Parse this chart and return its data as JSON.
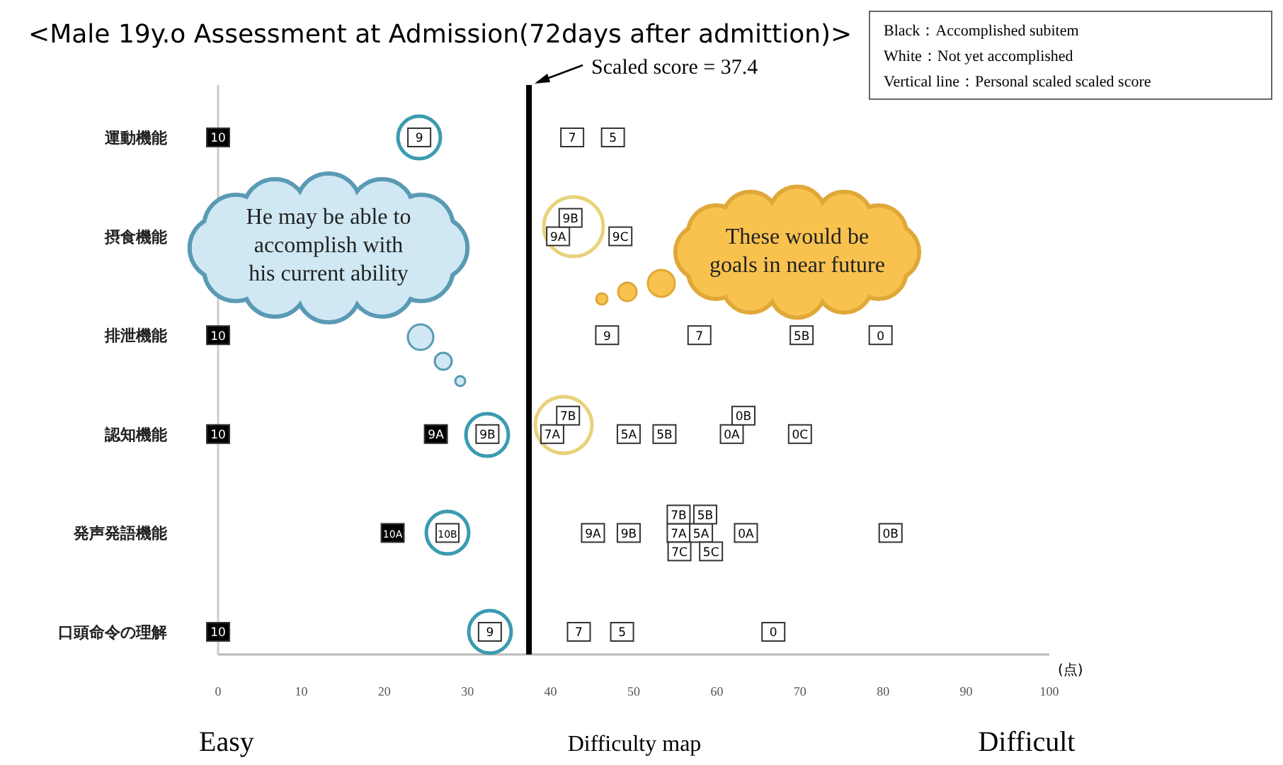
{
  "chart_data": {
    "type": "scatter",
    "orientation": "horizontal",
    "marker": "square",
    "title": "<Male 19y.o Assessment at Admission(72days after admittion)>",
    "xlabel": "(点)",
    "categories": [
      "運動機能",
      "摂食機能",
      "排泄機能",
      "認知機能",
      "発声発語機能",
      "口頭命令の理解"
    ],
    "xlim": [
      0,
      100
    ],
    "xticks": [
      0,
      10,
      20,
      30,
      40,
      50,
      60,
      70,
      80,
      90,
      100
    ],
    "series": [
      {
        "values": [
          0,
          40.9,
          0,
          0,
          21.0,
          0
        ],
        "colors": [
          "#000000",
          "#ffffff",
          "#000000",
          "#000000",
          "#000000",
          "#000000"
        ]
      },
      {
        "values": [
          24.2,
          42.4,
          46.8,
          26.2,
          27.6,
          32.7
        ],
        "colors": [
          "#ffffff",
          "#ffffff",
          "#ffffff",
          "#000000",
          "#ffffff",
          "#ffffff"
        ]
      },
      {
        "values": [
          42.6,
          48.4,
          57.9,
          32.4,
          45.1,
          43.4
        ],
        "colors": [
          "#ffffff",
          "#ffffff",
          "#ffffff",
          "#ffffff",
          "#ffffff",
          "#ffffff"
        ]
      },
      {
        "values": [
          47.5,
          null,
          70.2,
          40.2,
          49.4,
          48.6
        ],
        "colors": [
          "#ffffff",
          null,
          "#ffffff",
          "#ffffff",
          "#ffffff",
          "#ffffff"
        ]
      },
      {
        "values": [
          null,
          null,
          79.7,
          42.1,
          55.4,
          66.8
        ],
        "colors": [
          null,
          null,
          "#ffffff",
          "#ffffff",
          "#ffffff",
          "#ffffff"
        ]
      },
      {
        "values": [
          null,
          null,
          null,
          49.4,
          58.1,
          null
        ],
        "colors": [
          null,
          null,
          null,
          "#ffffff",
          "#ffffff",
          null
        ]
      },
      {
        "values": [
          null,
          null,
          null,
          53.7,
          55.4,
          null
        ],
        "colors": [
          null,
          null,
          null,
          "#ffffff",
          "#ffffff",
          null
        ]
      },
      {
        "values": [
          null,
          null,
          null,
          61.8,
          58.6,
          null
        ],
        "colors": [
          null,
          null,
          null,
          "#ffffff",
          "#ffffff",
          null
        ]
      },
      {
        "values": [
          null,
          null,
          null,
          63.2,
          55.5,
          null
        ],
        "colors": [
          null,
          null,
          null,
          "#ffffff",
          "#ffffff",
          null
        ]
      },
      {
        "values": [
          null,
          null,
          null,
          70.0,
          59.3,
          null
        ],
        "colors": [
          null,
          null,
          null,
          "#ffffff",
          "#ffffff",
          null
        ]
      },
      {
        "values": [
          null,
          null,
          null,
          null,
          63.5,
          null
        ],
        "colors": [
          null,
          null,
          null,
          null,
          "#ffffff",
          null
        ]
      },
      {
        "values": [
          null,
          null,
          null,
          null,
          80.9,
          null
        ],
        "colors": [
          null,
          null,
          null,
          null,
          "#ffffff",
          null
        ]
      }
    ],
    "ref_lines": [
      {
        "axis": "x",
        "value": 37.4,
        "label": "Scaled score = 37.4",
        "color": "#000000"
      }
    ],
    "annotations": [
      "Black：Accomplished subitem",
      "White：Not yet accomplished",
      "Vertical line：Personal scaled scaled score",
      "He may be able to\naccomplish with\nhis current ability",
      "These would be\ngoals in near future",
      "Easy",
      "Difficulty map",
      "Difficult",
      {
        "text": "10",
        "x": 0,
        "y": "運動機能"
      },
      {
        "text": "9",
        "x": 24.2,
        "y": "運動機能"
      },
      {
        "text": "7",
        "x": 42.6,
        "y": "運動機能"
      },
      {
        "text": "5",
        "x": 47.5,
        "y": "運動機能"
      },
      {
        "text": "9A",
        "x": 40.9,
        "y": "摂食機能"
      },
      {
        "text": "9B",
        "x": 42.4,
        "y": "摂食機能"
      },
      {
        "text": "9C",
        "x": 48.4,
        "y": "摂食機能"
      },
      {
        "text": "10",
        "x": 0,
        "y": "排泄機能"
      },
      {
        "text": "9",
        "x": 46.8,
        "y": "排泄機能"
      },
      {
        "text": "7",
        "x": 57.9,
        "y": "排泄機能"
      },
      {
        "text": "5B",
        "x": 70.2,
        "y": "排泄機能"
      },
      {
        "text": "0",
        "x": 79.7,
        "y": "排泄機能"
      },
      {
        "text": "10",
        "x": 0,
        "y": "認知機能"
      },
      {
        "text": "9A",
        "x": 26.2,
        "y": "認知機能"
      },
      {
        "text": "9B",
        "x": 32.4,
        "y": "認知機能"
      },
      {
        "text": "7A",
        "x": 40.2,
        "y": "認知機能"
      },
      {
        "text": "7B",
        "x": 42.1,
        "y": "認知機能"
      },
      {
        "text": "5A",
        "x": 49.4,
        "y": "認知機能"
      },
      {
        "text": "5B",
        "x": 53.7,
        "y": "認知機能"
      },
      {
        "text": "0A",
        "x": 61.8,
        "y": "認知機能"
      },
      {
        "text": "0B",
        "x": 63.2,
        "y": "認知機能"
      },
      {
        "text": "0C",
        "x": 70.0,
        "y": "認知機能"
      },
      {
        "text": "10A",
        "x": 21.0,
        "y": "発声発語機能"
      },
      {
        "text": "10B",
        "x": 27.6,
        "y": "発声発語機能"
      },
      {
        "text": "9A",
        "x": 45.1,
        "y": "発声発語機能"
      },
      {
        "text": "9B",
        "x": 49.4,
        "y": "発声発語機能"
      },
      {
        "text": "7A",
        "x": 55.4,
        "y": "発声発語機能"
      },
      {
        "text": "5A",
        "x": 58.1,
        "y": "発声発語機能"
      },
      {
        "text": "7B",
        "x": 55.4,
        "y": "発声発語機能"
      },
      {
        "text": "5B",
        "x": 58.6,
        "y": "発声発語機能"
      },
      {
        "text": "7C",
        "x": 55.5,
        "y": "発声発語機能"
      },
      {
        "text": "5C",
        "x": 59.3,
        "y": "発声発語機能"
      },
      {
        "text": "0A",
        "x": 63.5,
        "y": "発声発語機能"
      },
      {
        "text": "0B",
        "x": 80.9,
        "y": "発声発語機能"
      },
      {
        "text": "10",
        "x": 0,
        "y": "口頭命令の理解"
      },
      {
        "text": "9",
        "x": 32.7,
        "y": "口頭命令の理解"
      },
      {
        "text": "7",
        "x": 43.4,
        "y": "口頭命令の理解"
      },
      {
        "text": "5",
        "x": 48.6,
        "y": "口頭命令の理解"
      },
      {
        "text": "0",
        "x": 66.8,
        "y": "口頭命令の理解"
      }
    ]
  }
}
